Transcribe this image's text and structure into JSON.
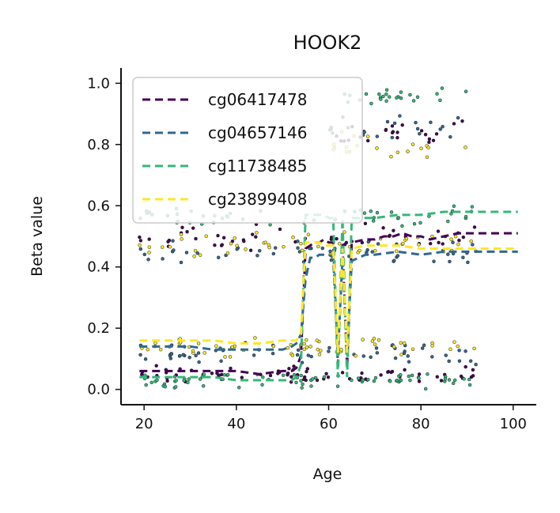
{
  "chart_data": {
    "type": "scatter",
    "title": "HOOK2",
    "xlabel": "Age",
    "ylabel": "Beta value",
    "xlim": [
      15,
      105
    ],
    "ylim": [
      -0.05,
      1.05
    ],
    "x_ticks": [
      20,
      40,
      60,
      80,
      100
    ],
    "y_ticks": [
      0.0,
      0.2,
      0.4,
      0.6,
      0.8,
      1.0
    ],
    "x_tick_labels": [
      "20",
      "40",
      "60",
      "80",
      "100"
    ],
    "y_tick_labels": [
      "0.0",
      "0.2",
      "0.4",
      "0.6",
      "0.8",
      "1.0"
    ],
    "grid": false,
    "legend_position": "top-left",
    "series": [
      {
        "name": "cg06417478",
        "color": "#440154",
        "trend": [
          [
            19,
            0.06
          ],
          [
            25,
            0.06
          ],
          [
            30,
            0.06
          ],
          [
            35,
            0.06
          ],
          [
            40,
            0.06
          ],
          [
            45,
            0.05
          ],
          [
            50,
            0.06
          ],
          [
            52,
            0.06
          ],
          [
            53,
            0.07
          ],
          [
            54,
            0.11
          ],
          [
            55,
            0.46
          ],
          [
            56,
            0.47
          ],
          [
            57,
            0.48
          ],
          [
            58,
            0.48
          ],
          [
            59,
            0.49
          ],
          [
            60,
            0.48
          ],
          [
            61,
            0.48
          ],
          [
            62,
            0.08
          ],
          [
            63,
            0.48
          ],
          [
            64,
            0.07
          ],
          [
            65,
            0.48
          ],
          [
            68,
            0.49
          ],
          [
            70,
            0.49
          ],
          [
            72,
            0.5
          ],
          [
            74,
            0.5
          ],
          [
            76,
            0.51
          ],
          [
            78,
            0.5
          ],
          [
            80,
            0.5
          ],
          [
            82,
            0.49
          ],
          [
            85,
            0.5
          ],
          [
            88,
            0.51
          ],
          [
            90,
            0.51
          ],
          [
            95,
            0.51
          ],
          [
            101,
            0.51
          ]
        ],
        "clusters": [
          {
            "x": [
              19,
              92
            ],
            "center": 0.05,
            "spread": 0.03,
            "n": 70
          },
          {
            "x": [
              19,
              92
            ],
            "center": 0.5,
            "spread": 0.05,
            "n": 50
          },
          {
            "x": [
              60,
              90
            ],
            "center": 0.84,
            "spread": 0.05,
            "n": 25
          }
        ]
      },
      {
        "name": "cg04657146",
        "color": "#31688e",
        "trend": [
          [
            19,
            0.14
          ],
          [
            25,
            0.14
          ],
          [
            30,
            0.14
          ],
          [
            35,
            0.13
          ],
          [
            40,
            0.13
          ],
          [
            45,
            0.13
          ],
          [
            50,
            0.13
          ],
          [
            52,
            0.14
          ],
          [
            53,
            0.15
          ],
          [
            54,
            0.18
          ],
          [
            55,
            0.36
          ],
          [
            56,
            0.43
          ],
          [
            57,
            0.43
          ],
          [
            58,
            0.44
          ],
          [
            59,
            0.44
          ],
          [
            60,
            0.44
          ],
          [
            61,
            0.43
          ],
          [
            62,
            0.11
          ],
          [
            63,
            0.43
          ],
          [
            64,
            0.11
          ],
          [
            65,
            0.42
          ],
          [
            68,
            0.44
          ],
          [
            70,
            0.44
          ],
          [
            75,
            0.45
          ],
          [
            80,
            0.44
          ],
          [
            85,
            0.45
          ],
          [
            90,
            0.45
          ],
          [
            95,
            0.45
          ],
          [
            101,
            0.45
          ]
        ],
        "clusters": [
          {
            "x": [
              19,
              92
            ],
            "center": 0.12,
            "spread": 0.04,
            "n": 60
          },
          {
            "x": [
              19,
              92
            ],
            "center": 0.45,
            "spread": 0.05,
            "n": 50
          },
          {
            "x": [
              60,
              90
            ],
            "center": 0.85,
            "spread": 0.05,
            "n": 20
          }
        ]
      },
      {
        "name": "cg11738485",
        "color": "#35b779",
        "trend": [
          [
            19,
            0.04
          ],
          [
            25,
            0.04
          ],
          [
            30,
            0.04
          ],
          [
            35,
            0.04
          ],
          [
            40,
            0.03
          ],
          [
            45,
            0.03
          ],
          [
            50,
            0.03
          ],
          [
            52,
            0.03
          ],
          [
            53,
            0.04
          ],
          [
            54,
            0.08
          ],
          [
            55,
            0.57
          ],
          [
            56,
            0.57
          ],
          [
            57,
            0.57
          ],
          [
            58,
            0.57
          ],
          [
            59,
            0.57
          ],
          [
            60,
            0.56
          ],
          [
            61,
            0.56
          ],
          [
            62,
            0.04
          ],
          [
            63,
            0.56
          ],
          [
            64,
            0.04
          ],
          [
            65,
            0.56
          ],
          [
            68,
            0.56
          ],
          [
            70,
            0.56
          ],
          [
            75,
            0.57
          ],
          [
            80,
            0.57
          ],
          [
            85,
            0.58
          ],
          [
            90,
            0.58
          ],
          [
            95,
            0.58
          ],
          [
            101,
            0.58
          ]
        ],
        "clusters": [
          {
            "x": [
              19,
              92
            ],
            "center": 0.03,
            "spread": 0.03,
            "n": 80
          },
          {
            "x": [
              19,
              92
            ],
            "center": 0.57,
            "spread": 0.04,
            "n": 50
          },
          {
            "x": [
              60,
              90
            ],
            "center": 0.96,
            "spread": 0.03,
            "n": 25
          }
        ]
      },
      {
        "name": "cg23899408",
        "color": "#fde725",
        "trend": [
          [
            19,
            0.16
          ],
          [
            25,
            0.16
          ],
          [
            30,
            0.16
          ],
          [
            35,
            0.16
          ],
          [
            40,
            0.15
          ],
          [
            45,
            0.15
          ],
          [
            50,
            0.16
          ],
          [
            52,
            0.16
          ],
          [
            53,
            0.16
          ],
          [
            54,
            0.18
          ],
          [
            55,
            0.48
          ],
          [
            56,
            0.48
          ],
          [
            57,
            0.48
          ],
          [
            58,
            0.48
          ],
          [
            59,
            0.47
          ],
          [
            60,
            0.47
          ],
          [
            61,
            0.47
          ],
          [
            62,
            0.12
          ],
          [
            63,
            0.46
          ],
          [
            64,
            0.12
          ],
          [
            65,
            0.46
          ],
          [
            68,
            0.47
          ],
          [
            70,
            0.47
          ],
          [
            75,
            0.47
          ],
          [
            80,
            0.46
          ],
          [
            85,
            0.46
          ],
          [
            90,
            0.46
          ],
          [
            95,
            0.46
          ],
          [
            101,
            0.46
          ]
        ],
        "clusters": [
          {
            "x": [
              19,
              92
            ],
            "center": 0.14,
            "spread": 0.04,
            "n": 60
          },
          {
            "x": [
              19,
              92
            ],
            "center": 0.47,
            "spread": 0.05,
            "n": 50
          },
          {
            "x": [
              60,
              90
            ],
            "center": 0.8,
            "spread": 0.05,
            "n": 20
          }
        ]
      }
    ]
  }
}
